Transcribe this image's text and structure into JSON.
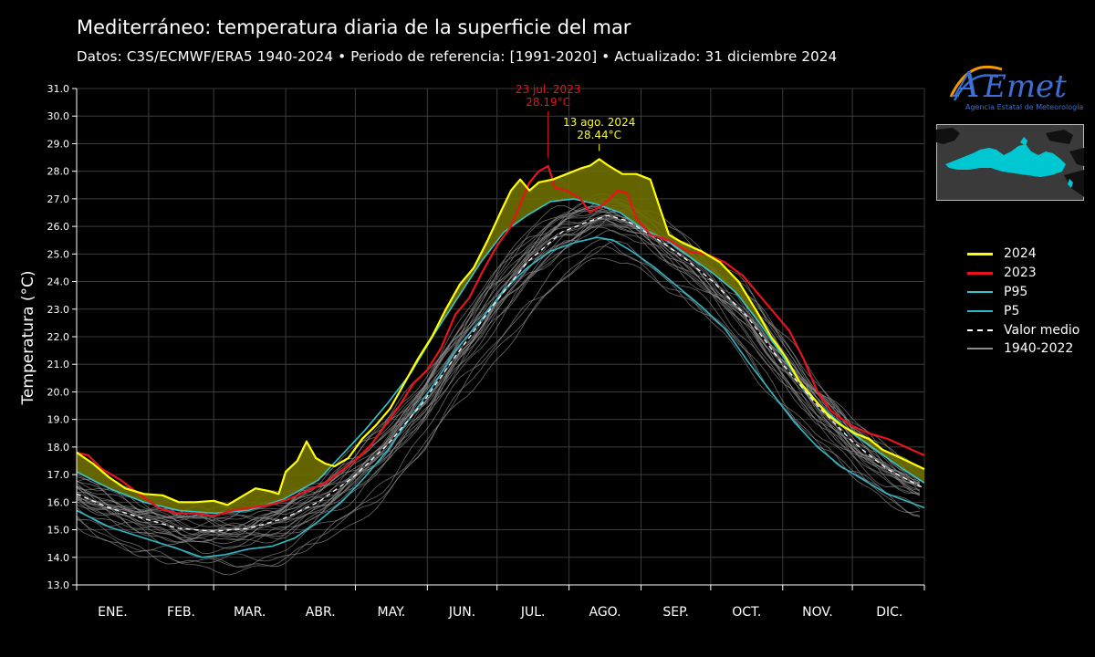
{
  "header": {
    "title": "Mediterráneo: temperatura diaria de la superficie del mar",
    "subtitle": "Datos: C3S/ECMWF/ERA5 1940-2024   •   Periodo de referencia: [1991-2020]  •  Actualizado: 31 diciembre 2024"
  },
  "logo": {
    "wordmark": "AEmet",
    "tagline": "Agencia Estatal de Meteorología"
  },
  "colors": {
    "y2024": "#ffff00",
    "y2023": "#e8141c",
    "p95": "#33c6cf",
    "p5": "#2fb8c6",
    "mean": "#ffffff",
    "historical": "#8c8c8c",
    "fill_above": "#6e6e00",
    "map_sea": "#00c8d2",
    "map_land": "#111111",
    "map_bg": "#3a3a3a"
  },
  "chart_data": {
    "type": "line",
    "xlabel": "",
    "ylabel": "Temperatura (°C)",
    "ylim": [
      13.0,
      31.0
    ],
    "yticks": [
      "13.0",
      "14.0",
      "15.0",
      "16.0",
      "17.0",
      "18.0",
      "19.0",
      "20.0",
      "21.0",
      "22.0",
      "23.0",
      "24.0",
      "25.0",
      "26.0",
      "27.0",
      "28.0",
      "29.0",
      "30.0",
      "31.0"
    ],
    "x_unit": "day of year",
    "xlim": [
      1,
      366
    ],
    "months": [
      "ENE.",
      "FEB.",
      "MAR.",
      "ABR.",
      "MAY.",
      "JUN.",
      "JUL.",
      "AGO.",
      "SEP.",
      "OCT.",
      "NOV.",
      "DIC."
    ],
    "grid": true,
    "legend_position": "right",
    "legend": [
      "2024",
      "2023",
      "P95",
      "P5",
      "Valor medio",
      "1940-2022"
    ],
    "series": [
      {
        "name": "2024",
        "key": "y2024",
        "width": 2.2,
        "points": [
          [
            1,
            17.8
          ],
          [
            8,
            17.4
          ],
          [
            15,
            16.9
          ],
          [
            22,
            16.5
          ],
          [
            30,
            16.3
          ],
          [
            38,
            16.25
          ],
          [
            45,
            16.0
          ],
          [
            52,
            16.0
          ],
          [
            60,
            16.05
          ],
          [
            66,
            15.9
          ],
          [
            72,
            16.2
          ],
          [
            78,
            16.5
          ],
          [
            84,
            16.4
          ],
          [
            88,
            16.3
          ],
          [
            91,
            17.1
          ],
          [
            96,
            17.5
          ],
          [
            100,
            18.2
          ],
          [
            104,
            17.6
          ],
          [
            108,
            17.4
          ],
          [
            112,
            17.3
          ],
          [
            118,
            17.6
          ],
          [
            124,
            18.3
          ],
          [
            130,
            18.8
          ],
          [
            136,
            19.4
          ],
          [
            142,
            20.3
          ],
          [
            148,
            21.2
          ],
          [
            154,
            22.0
          ],
          [
            160,
            23.0
          ],
          [
            166,
            23.9
          ],
          [
            172,
            24.5
          ],
          [
            178,
            25.5
          ],
          [
            184,
            26.6
          ],
          [
            188,
            27.3
          ],
          [
            192,
            27.7
          ],
          [
            196,
            27.3
          ],
          [
            200,
            27.6
          ],
          [
            206,
            27.7
          ],
          [
            212,
            27.9
          ],
          [
            218,
            28.1
          ],
          [
            222,
            28.2
          ],
          [
            226,
            28.44
          ],
          [
            230,
            28.2
          ],
          [
            236,
            27.9
          ],
          [
            242,
            27.9
          ],
          [
            248,
            27.7
          ],
          [
            252,
            26.7
          ],
          [
            256,
            25.7
          ],
          [
            262,
            25.4
          ],
          [
            270,
            25.1
          ],
          [
            278,
            24.7
          ],
          [
            286,
            24.0
          ],
          [
            294,
            22.9
          ],
          [
            300,
            22.0
          ],
          [
            306,
            21.3
          ],
          [
            312,
            20.4
          ],
          [
            318,
            19.8
          ],
          [
            324,
            19.2
          ],
          [
            330,
            18.8
          ],
          [
            336,
            18.5
          ],
          [
            342,
            18.3
          ],
          [
            348,
            17.9
          ],
          [
            356,
            17.6
          ],
          [
            366,
            17.2
          ]
        ]
      },
      {
        "name": "2023",
        "key": "y2023",
        "width": 2.2,
        "points": [
          [
            1,
            17.8
          ],
          [
            6,
            17.7
          ],
          [
            12,
            17.2
          ],
          [
            20,
            16.8
          ],
          [
            28,
            16.3
          ],
          [
            36,
            15.8
          ],
          [
            44,
            15.6
          ],
          [
            52,
            15.6
          ],
          [
            60,
            15.5
          ],
          [
            68,
            15.7
          ],
          [
            76,
            15.8
          ],
          [
            84,
            15.9
          ],
          [
            92,
            16.1
          ],
          [
            100,
            16.4
          ],
          [
            108,
            16.7
          ],
          [
            116,
            17.2
          ],
          [
            122,
            17.6
          ],
          [
            128,
            18.1
          ],
          [
            134,
            18.8
          ],
          [
            140,
            19.5
          ],
          [
            146,
            20.3
          ],
          [
            152,
            20.8
          ],
          [
            158,
            21.6
          ],
          [
            164,
            22.8
          ],
          [
            170,
            23.4
          ],
          [
            176,
            24.4
          ],
          [
            182,
            25.3
          ],
          [
            188,
            26.0
          ],
          [
            192,
            26.8
          ],
          [
            196,
            27.6
          ],
          [
            200,
            28.0
          ],
          [
            204,
            28.19
          ],
          [
            207,
            27.4
          ],
          [
            212,
            27.3
          ],
          [
            218,
            27.0
          ],
          [
            222,
            26.5
          ],
          [
            228,
            26.8
          ],
          [
            234,
            27.3
          ],
          [
            238,
            27.2
          ],
          [
            242,
            26.3
          ],
          [
            248,
            25.7
          ],
          [
            256,
            25.5
          ],
          [
            264,
            25.1
          ],
          [
            272,
            25.0
          ],
          [
            280,
            24.7
          ],
          [
            288,
            24.2
          ],
          [
            296,
            23.4
          ],
          [
            302,
            22.8
          ],
          [
            308,
            22.2
          ],
          [
            314,
            21.2
          ],
          [
            320,
            20.0
          ],
          [
            326,
            19.3
          ],
          [
            334,
            18.8
          ],
          [
            342,
            18.5
          ],
          [
            350,
            18.3
          ],
          [
            358,
            18.0
          ],
          [
            366,
            17.7
          ]
        ]
      },
      {
        "name": "P95",
        "key": "p95",
        "width": 1.6,
        "points": [
          [
            1,
            17.1
          ],
          [
            15,
            16.5
          ],
          [
            30,
            16.0
          ],
          [
            45,
            15.7
          ],
          [
            60,
            15.6
          ],
          [
            75,
            15.7
          ],
          [
            90,
            16.1
          ],
          [
            105,
            16.8
          ],
          [
            115,
            17.7
          ],
          [
            125,
            18.6
          ],
          [
            135,
            19.6
          ],
          [
            145,
            20.7
          ],
          [
            155,
            22.1
          ],
          [
            165,
            23.4
          ],
          [
            175,
            24.7
          ],
          [
            185,
            25.8
          ],
          [
            195,
            26.4
          ],
          [
            205,
            26.9
          ],
          [
            215,
            27.0
          ],
          [
            225,
            26.8
          ],
          [
            235,
            26.5
          ],
          [
            245,
            25.9
          ],
          [
            255,
            25.5
          ],
          [
            265,
            24.9
          ],
          [
            275,
            24.3
          ],
          [
            285,
            23.6
          ],
          [
            295,
            22.5
          ],
          [
            305,
            21.3
          ],
          [
            315,
            20.0
          ],
          [
            325,
            19.2
          ],
          [
            335,
            18.5
          ],
          [
            345,
            17.9
          ],
          [
            355,
            17.3
          ],
          [
            366,
            16.7
          ]
        ]
      },
      {
        "name": "P5",
        "key": "p5",
        "width": 1.6,
        "points": [
          [
            1,
            15.7
          ],
          [
            15,
            15.1
          ],
          [
            30,
            14.7
          ],
          [
            45,
            14.3
          ],
          [
            55,
            14.0
          ],
          [
            65,
            14.1
          ],
          [
            75,
            14.3
          ],
          [
            85,
            14.4
          ],
          [
            95,
            14.7
          ],
          [
            105,
            15.3
          ],
          [
            115,
            16.0
          ],
          [
            125,
            16.9
          ],
          [
            135,
            17.9
          ],
          [
            145,
            19.1
          ],
          [
            155,
            20.3
          ],
          [
            165,
            21.6
          ],
          [
            175,
            22.6
          ],
          [
            185,
            23.7
          ],
          [
            195,
            24.5
          ],
          [
            205,
            25.1
          ],
          [
            215,
            25.4
          ],
          [
            225,
            25.6
          ],
          [
            232,
            25.5
          ],
          [
            240,
            25.1
          ],
          [
            250,
            24.5
          ],
          [
            260,
            23.8
          ],
          [
            270,
            23.1
          ],
          [
            280,
            22.3
          ],
          [
            290,
            21.1
          ],
          [
            300,
            20.0
          ],
          [
            310,
            18.9
          ],
          [
            320,
            18.0
          ],
          [
            330,
            17.3
          ],
          [
            340,
            16.8
          ],
          [
            350,
            16.3
          ],
          [
            366,
            15.8
          ]
        ]
      },
      {
        "name": "Valor medio",
        "key": "mean",
        "width": 1.3,
        "dash": "5,4",
        "points": [
          [
            1,
            16.3
          ],
          [
            15,
            15.8
          ],
          [
            30,
            15.4
          ],
          [
            45,
            15.05
          ],
          [
            60,
            14.95
          ],
          [
            75,
            15.05
          ],
          [
            90,
            15.4
          ],
          [
            105,
            16.0
          ],
          [
            120,
            16.9
          ],
          [
            135,
            18.1
          ],
          [
            150,
            19.6
          ],
          [
            165,
            21.4
          ],
          [
            180,
            23.1
          ],
          [
            195,
            24.7
          ],
          [
            210,
            25.8
          ],
          [
            222,
            26.2
          ],
          [
            230,
            26.4
          ],
          [
            238,
            26.2
          ],
          [
            250,
            25.6
          ],
          [
            262,
            24.9
          ],
          [
            275,
            24.0
          ],
          [
            290,
            22.7
          ],
          [
            305,
            21.0
          ],
          [
            320,
            19.5
          ],
          [
            335,
            18.2
          ],
          [
            350,
            17.2
          ],
          [
            366,
            16.5
          ]
        ]
      }
    ],
    "historical_band": {
      "name": "1940-2022",
      "key": "historical",
      "count": 30
    },
    "annotations": [
      {
        "series": "2023",
        "key": "y2023",
        "x": 204,
        "y": 28.19,
        "date": "23 jul. 2023",
        "value": "28.19°C"
      },
      {
        "series": "2024",
        "key": "y2024",
        "x": 226,
        "y": 28.44,
        "date": "13 ago. 2024",
        "value": "28.44°C"
      }
    ]
  }
}
